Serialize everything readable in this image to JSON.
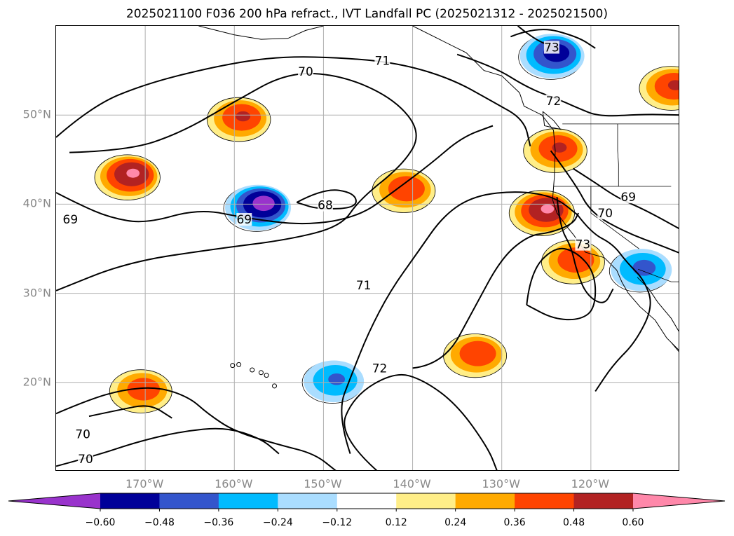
{
  "title": "2025021100 F036 200 hPa refract., IVT Landfall PC (2025021312 - 2025021500)",
  "map": {
    "projection": "PlateCarree",
    "extent": {
      "lon_min": -180,
      "lon_max": -110,
      "lat_min": 10,
      "lat_max": 60
    },
    "gridlines": true,
    "lat_labels": [
      {
        "lat": 20,
        "text": "20°N"
      },
      {
        "lat": 30,
        "text": "30°N"
      },
      {
        "lat": 40,
        "text": "40°N"
      },
      {
        "lat": 50,
        "text": "50°N"
      }
    ],
    "lon_labels": [
      {
        "lon": -170,
        "text": "170°W"
      },
      {
        "lon": -160,
        "text": "160°W"
      },
      {
        "lon": -150,
        "text": "150°W"
      },
      {
        "lon": -140,
        "text": "140°W"
      },
      {
        "lon": -130,
        "text": "130°W"
      },
      {
        "lon": -120,
        "text": "120°W"
      }
    ],
    "contour_labels": [
      {
        "text": "71",
        "lon": -143.4,
        "lat": 56.1
      },
      {
        "text": "70",
        "lon": -152.0,
        "lat": 54.9
      },
      {
        "text": "73",
        "lon": -124.4,
        "lat": 57.6
      },
      {
        "text": "72",
        "lon": -124.2,
        "lat": 51.6
      },
      {
        "text": "68",
        "lon": -149.8,
        "lat": 39.9
      },
      {
        "text": "69",
        "lon": -158.9,
        "lat": 38.3
      },
      {
        "text": "69",
        "lon": -178.4,
        "lat": 38.3
      },
      {
        "text": "69",
        "lon": -115.8,
        "lat": 40.8
      },
      {
        "text": "70",
        "lon": -118.4,
        "lat": 39.0
      },
      {
        "text": "73",
        "lon": -120.9,
        "lat": 35.5
      },
      {
        "text": "71",
        "lon": -145.5,
        "lat": 30.9
      },
      {
        "text": "72",
        "lon": -143.7,
        "lat": 21.6
      },
      {
        "text": "70",
        "lon": -177.0,
        "lat": 14.2
      },
      {
        "text": "70",
        "lon": -176.7,
        "lat": 11.4
      }
    ]
  },
  "chart_data": {
    "type": "heatmap",
    "variable": "200 hPa refract., IVT Landfall PC",
    "colorbar": {
      "levels": [
        -0.72,
        -0.6,
        -0.48,
        -0.36,
        -0.24,
        -0.12,
        0.12,
        0.24,
        0.36,
        0.48,
        0.6,
        0.72
      ],
      "colors": [
        "#9933cc",
        "#000099",
        "#3355cc",
        "#00bbff",
        "#aaddff",
        "#ffffff",
        "#ffee88",
        "#ffaa00",
        "#ff4400",
        "#b22222",
        "#ff88aa"
      ],
      "tick_labels": [
        "−0.60",
        "−0.48",
        "−0.36",
        "−0.24",
        "−0.12",
        "0.12",
        "0.24",
        "0.36",
        "0.48",
        "0.60"
      ],
      "extend": "both"
    },
    "positive_features": [
      {
        "region": "west",
        "lon": -172.0,
        "lat": 43.0,
        "peak": 0.62
      },
      {
        "region": "gulf-of-alaska-south",
        "lon": -159.5,
        "lat": 49.5,
        "peak": 0.5
      },
      {
        "region": "central",
        "lon": -141.0,
        "lat": 41.5,
        "peak": 0.48
      },
      {
        "region": "pacific-northwest-coast",
        "lon": -124.0,
        "lat": 46.0,
        "peak": 0.5
      },
      {
        "region": "northern-california-offshore",
        "lon": -125.5,
        "lat": 39.0,
        "peak": 0.62
      },
      {
        "region": "subtropical-east",
        "lon": -122.0,
        "lat": 33.5,
        "peak": 0.48
      },
      {
        "region": "subtropical-band",
        "lon": -133.0,
        "lat": 23.0,
        "peak": 0.48
      },
      {
        "region": "southwest",
        "lon": -170.5,
        "lat": 19.0,
        "peak": 0.45
      },
      {
        "region": "northeast-interior",
        "lon": -111.0,
        "lat": 53.0,
        "peak": 0.5
      }
    ],
    "negative_features": [
      {
        "region": "northeast-of-hawaii",
        "lon": -157.5,
        "lat": 39.5,
        "peak": -0.66
      },
      {
        "region": "british-columbia-interior",
        "lon": -124.5,
        "lat": 56.5,
        "peak": -0.55
      },
      {
        "region": "near-hawaii",
        "lon": -149.0,
        "lat": 20.0,
        "peak": -0.38
      },
      {
        "region": "california-inland",
        "lon": -114.5,
        "lat": 32.5,
        "peak": -0.4
      }
    ]
  }
}
